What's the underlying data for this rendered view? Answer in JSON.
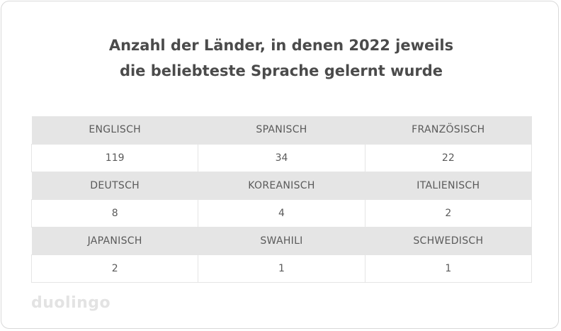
{
  "chart_data": {
    "type": "table",
    "title_lines": [
      "Anzahl der Länder, in denen 2022 jeweils",
      "die beliebteste Sprache gelernt wurde"
    ],
    "rows": [
      {
        "languages": [
          "ENGLISCH",
          "SPANISCH",
          "FRANZÖSISCH"
        ],
        "values": [
          "119",
          "34",
          "22"
        ]
      },
      {
        "languages": [
          "DEUTSCH",
          "KOREANISCH",
          "ITALIENISCH"
        ],
        "values": [
          "8",
          "4",
          "2"
        ]
      },
      {
        "languages": [
          "JAPANISCH",
          "SWAHILI",
          "SCHWEDISCH"
        ],
        "values": [
          "2",
          "1",
          "1"
        ]
      }
    ],
    "colors": {
      "header_row": "#e5e5e5",
      "text": "#5a5a5a",
      "title": "#4b4b4b",
      "logo": "#e3e3e3"
    }
  },
  "branding": {
    "logo_text": "duolingo"
  }
}
